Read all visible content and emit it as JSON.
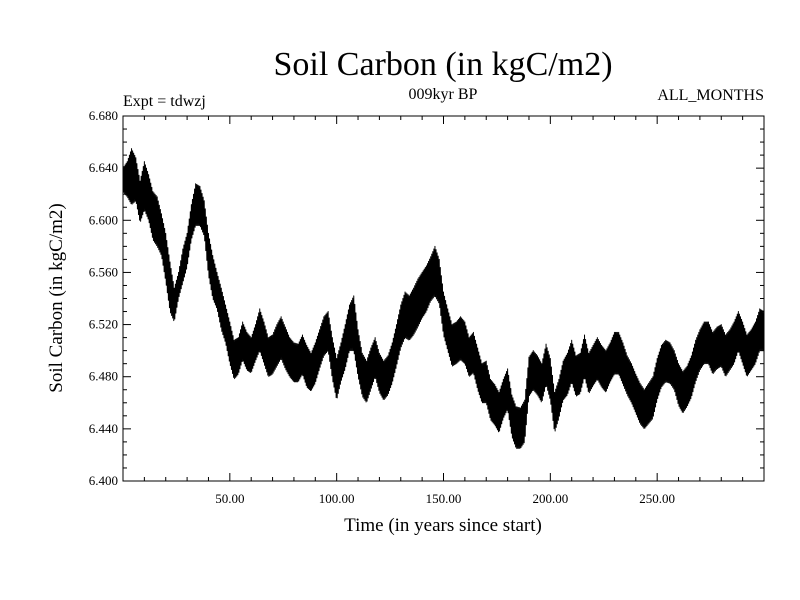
{
  "chart_data": {
    "type": "line",
    "title": "Soil Carbon (in kgC/m2)",
    "subtitle": "009kyr BP",
    "left_note": "Expt = tdwzj",
    "right_note": "ALL_MONTHS",
    "xlabel": "Time (in years since start)",
    "ylabel": "Soil Carbon (in kgC/m2)",
    "xlim": [
      0,
      300
    ],
    "ylim": [
      6.4,
      6.68
    ],
    "xticks": [
      {
        "value": 50,
        "label": "50.00"
      },
      {
        "value": 100,
        "label": "100.00"
      },
      {
        "value": 150,
        "label": "150.00"
      },
      {
        "value": 200,
        "label": "200.00"
      },
      {
        "value": 250,
        "label": "250.00"
      }
    ],
    "yticks": [
      {
        "value": 6.4,
        "label": "6.400"
      },
      {
        "value": 6.44,
        "label": "6.440"
      },
      {
        "value": 6.48,
        "label": "6.480"
      },
      {
        "value": 6.52,
        "label": "6.520"
      },
      {
        "value": 6.56,
        "label": "6.560"
      },
      {
        "value": 6.6,
        "label": "6.600"
      },
      {
        "value": 6.64,
        "label": "6.640"
      },
      {
        "value": 6.68,
        "label": "6.680"
      }
    ],
    "grid": false,
    "series": [
      {
        "color": "#000000",
        "x": [
          0,
          2,
          4,
          6,
          8,
          10,
          12,
          14,
          16,
          18,
          20,
          22,
          24,
          26,
          28,
          30,
          32,
          34,
          36,
          38,
          40,
          42,
          44,
          46,
          48,
          50,
          52,
          54,
          56,
          58,
          60,
          62,
          64,
          66,
          68,
          70,
          72,
          74,
          76,
          78,
          80,
          82,
          84,
          86,
          88,
          90,
          92,
          94,
          96,
          98,
          100,
          102,
          104,
          106,
          108,
          110,
          112,
          114,
          116,
          118,
          120,
          122,
          124,
          126,
          128,
          130,
          132,
          134,
          136,
          138,
          140,
          142,
          144,
          146,
          148,
          150,
          152,
          154,
          156,
          158,
          160,
          162,
          164,
          166,
          168,
          170,
          172,
          174,
          176,
          178,
          180,
          182,
          184,
          186,
          188,
          190,
          192,
          194,
          196,
          198,
          200,
          202,
          204,
          206,
          208,
          210,
          212,
          214,
          216,
          218,
          220,
          222,
          224,
          226,
          228,
          230,
          232,
          234,
          236,
          238,
          240,
          242,
          244,
          246,
          248,
          250,
          252,
          254,
          256,
          258,
          260,
          262,
          264,
          266,
          268,
          270,
          272,
          274,
          276,
          278,
          280,
          282,
          284,
          286,
          288,
          290,
          292,
          294,
          296,
          298,
          300
        ],
        "y_min": [
          6.622,
          6.618,
          6.612,
          6.615,
          6.598,
          6.608,
          6.6,
          6.585,
          6.58,
          6.573,
          6.553,
          6.53,
          6.522,
          6.54,
          6.552,
          6.564,
          6.585,
          6.596,
          6.596,
          6.588,
          6.558,
          6.54,
          6.532,
          6.516,
          6.506,
          6.49,
          6.478,
          6.482,
          6.493,
          6.485,
          6.483,
          6.492,
          6.5,
          6.49,
          6.48,
          6.482,
          6.488,
          6.494,
          6.486,
          6.48,
          6.476,
          6.476,
          6.482,
          6.472,
          6.469,
          6.475,
          6.486,
          6.496,
          6.5,
          6.478,
          6.462,
          6.476,
          6.486,
          6.5,
          6.5,
          6.48,
          6.465,
          6.46,
          6.47,
          6.48,
          6.468,
          6.462,
          6.466,
          6.475,
          6.488,
          6.502,
          6.51,
          6.508,
          6.512,
          6.518,
          6.525,
          6.53,
          6.538,
          6.542,
          6.536,
          6.512,
          6.5,
          6.488,
          6.49,
          6.493,
          6.49,
          6.48,
          6.483,
          6.47,
          6.46,
          6.46,
          6.447,
          6.443,
          6.437,
          6.448,
          6.455,
          6.434,
          6.425,
          6.425,
          6.43,
          6.465,
          6.47,
          6.466,
          6.46,
          6.474,
          6.462,
          6.437,
          6.448,
          6.462,
          6.466,
          6.476,
          6.465,
          6.467,
          6.48,
          6.467,
          6.473,
          6.478,
          6.472,
          6.468,
          6.476,
          6.482,
          6.482,
          6.474,
          6.466,
          6.46,
          6.452,
          6.444,
          6.44,
          6.444,
          6.448,
          6.462,
          6.472,
          6.476,
          6.475,
          6.47,
          6.458,
          6.452,
          6.457,
          6.464,
          6.476,
          6.485,
          6.49,
          6.49,
          6.482,
          6.486,
          6.488,
          6.48,
          6.485,
          6.49,
          6.5,
          6.49,
          6.48,
          6.485,
          6.49,
          6.5,
          6.5
        ],
        "y_max": [
          6.64,
          6.645,
          6.655,
          6.648,
          6.63,
          6.645,
          6.635,
          6.622,
          6.618,
          6.605,
          6.59,
          6.568,
          6.548,
          6.56,
          6.578,
          6.59,
          6.612,
          6.628,
          6.626,
          6.615,
          6.59,
          6.573,
          6.56,
          6.548,
          6.535,
          6.522,
          6.508,
          6.51,
          6.522,
          6.514,
          6.51,
          6.52,
          6.532,
          6.522,
          6.51,
          6.512,
          6.52,
          6.526,
          6.518,
          6.51,
          6.506,
          6.505,
          6.512,
          6.504,
          6.498,
          6.506,
          6.516,
          6.526,
          6.53,
          6.51,
          6.494,
          6.506,
          6.52,
          6.535,
          6.542,
          6.516,
          6.498,
          6.492,
          6.502,
          6.51,
          6.498,
          6.492,
          6.496,
          6.506,
          6.52,
          6.535,
          6.545,
          6.542,
          6.548,
          6.555,
          6.56,
          6.565,
          6.572,
          6.58,
          6.57,
          6.545,
          6.532,
          6.52,
          6.522,
          6.526,
          6.522,
          6.51,
          6.514,
          6.502,
          6.49,
          6.492,
          6.478,
          6.474,
          6.468,
          6.478,
          6.486,
          6.466,
          6.457,
          6.456,
          6.462,
          6.495,
          6.5,
          6.496,
          6.49,
          6.505,
          6.494,
          6.468,
          6.478,
          6.492,
          6.498,
          6.508,
          6.496,
          6.498,
          6.512,
          6.498,
          6.504,
          6.51,
          6.504,
          6.5,
          6.506,
          6.514,
          6.514,
          6.506,
          6.496,
          6.49,
          6.482,
          6.475,
          6.47,
          6.475,
          6.48,
          6.494,
          6.504,
          6.508,
          6.506,
          6.5,
          6.49,
          6.484,
          6.488,
          6.496,
          6.508,
          6.516,
          6.522,
          6.522,
          6.514,
          6.518,
          6.52,
          6.512,
          6.516,
          6.522,
          6.53,
          6.522,
          6.512,
          6.516,
          6.522,
          6.532,
          6.53
        ]
      }
    ]
  }
}
